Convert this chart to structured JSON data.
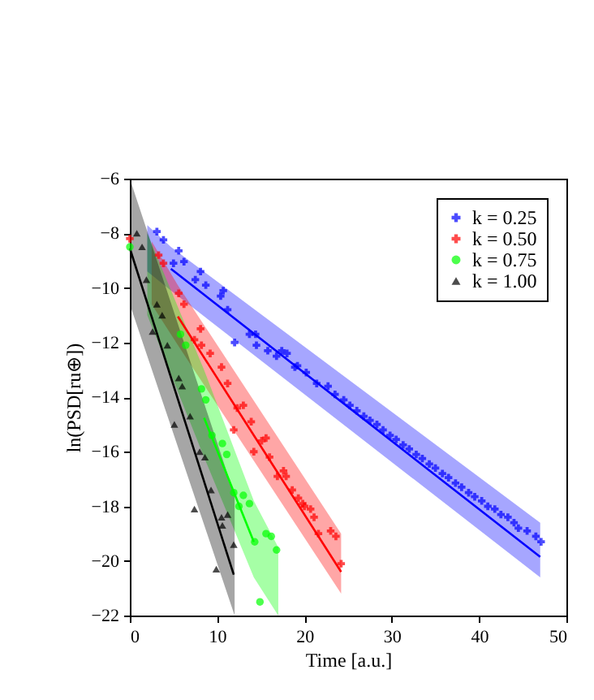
{
  "chart_data": {
    "type": "scatter",
    "xlabel": "Time [a.u.]",
    "ylabel": "ln(PSD[ru⊕])",
    "xlim": [
      0,
      50
    ],
    "ylim": [
      -22,
      -6
    ],
    "xticks": [
      0,
      10,
      20,
      30,
      40,
      50
    ],
    "yticks": [
      -22,
      -20,
      -18,
      -16,
      -14,
      -12,
      -10,
      -8,
      -6
    ],
    "legend": "top right",
    "series": [
      {
        "type": "line",
        "color": "#0000ff",
        "x": [
          2,
          4.7,
          47
        ],
        "values": [
          null,
          -9.3,
          -19.85
        ],
        "lower": [
          -9.4,
          -10.1,
          -20.6
        ],
        "upper": [
          -7.7,
          -8.5,
          -18.6
        ]
      },
      {
        "type": "line",
        "color": "#ff0000",
        "x": [
          2.5,
          5.5,
          24.2
        ],
        "values": [
          null,
          -11.05,
          -20.4
        ],
        "lower": [
          -10.6,
          -12.1,
          -21.2
        ],
        "upper": [
          -8.3,
          -9.9,
          -19.0
        ]
      },
      {
        "type": "line",
        "color": "#00ff00",
        "x": [
          2,
          8.5,
          14.2,
          17
        ],
        "values": [
          null,
          -14.76,
          -19.3,
          null
        ],
        "lower": [
          -11.0,
          -16.2,
          -20.6,
          -22
        ],
        "upper": [
          -8.0,
          -13.0,
          -17.8,
          -19.5
        ]
      },
      {
        "type": "line",
        "color": "#000000",
        "x": [
          0,
          11.9,
          12
        ],
        "values": [
          -8.55,
          -20.5,
          null
        ],
        "lower": [
          -10.6,
          -21.9,
          -22
        ],
        "upper": [
          -6,
          -17.5,
          -17.6
        ]
      },
      {
        "type": "scatter",
        "name": "k = 0.25",
        "color": "#0000ff",
        "marker": "cross",
        "x": [
          3.1,
          3.85,
          5.0,
          5.6,
          6.2,
          7.5,
          8.1,
          8.7,
          10.4,
          10.7,
          11.2,
          12.0,
          13.7,
          14.4,
          14.5,
          15.8,
          16.8,
          17.4,
          18,
          18.9,
          19.2,
          20.2,
          21.4,
          22.7,
          23.5,
          24.5,
          25.2,
          26,
          26.8,
          27.5,
          28.3,
          29,
          29.8,
          30.5,
          31.3,
          32,
          32.8,
          33.5,
          34.3,
          35,
          35.8,
          36.5,
          37.3,
          38,
          38.8,
          39.5,
          40.3,
          41,
          41.8,
          42.5,
          43.3,
          44,
          44.5,
          45.5,
          46.5,
          47.1
        ],
        "values": [
          -7.94,
          -8.24,
          -9.1,
          -8.64,
          -9.04,
          -9.7,
          -9.4,
          -9.9,
          -10.3,
          -10.1,
          -10.8,
          -12.0,
          -11.7,
          -11.7,
          -12.1,
          -12.3,
          -12.5,
          -12.3,
          -12.4,
          -12.9,
          -12.85,
          -13.1,
          -13.5,
          -13.6,
          -13.9,
          -14.1,
          -14.3,
          -14.5,
          -14.7,
          -14.85,
          -15.0,
          -15.2,
          -15.4,
          -15.55,
          -15.75,
          -15.9,
          -16.1,
          -16.25,
          -16.45,
          -16.6,
          -16.8,
          -16.95,
          -17.15,
          -17.3,
          -17.5,
          -17.65,
          -17.8,
          -18.0,
          -18.1,
          -18.3,
          -18.4,
          -18.6,
          -18.8,
          -18.9,
          -19.1,
          -19.3
        ]
      },
      {
        "type": "scatter",
        "name": "k = 0.50",
        "color": "#ff0000",
        "marker": "cross",
        "x": [
          0,
          3.3,
          3.85,
          5.6,
          6.2,
          7.4,
          8.1,
          8.2,
          9.2,
          10.5,
          11.2,
          11.9,
          12.3,
          13,
          13.9,
          14.2,
          15.1,
          15.6,
          16,
          16.9,
          17.6,
          17.9,
          18.6,
          19.3,
          19.8,
          20,
          20.7,
          21.1,
          21.6,
          23,
          23.6,
          24.2
        ],
        "values": [
          -8.2,
          -8.8,
          -9.1,
          -10.2,
          -10.6,
          -11.9,
          -11.5,
          -12.1,
          -12.4,
          -12.9,
          -13.5,
          -15.2,
          -14.4,
          -14.3,
          -14.9,
          -16.0,
          -15.6,
          -15.5,
          -16.2,
          -16.9,
          -16.7,
          -16.9,
          -17.4,
          -17.7,
          -17.9,
          -18.0,
          -18.1,
          -18.4,
          -19.0,
          -18.9,
          -19.1,
          -20.1
        ]
      },
      {
        "type": "scatter",
        "name": "k = 0.75",
        "color": "#00ff00",
        "marker": "circle",
        "x": [
          0,
          5.8,
          6.4,
          8.2,
          8.7,
          9.4,
          10.6,
          11.1,
          11.9,
          12.5,
          13,
          13.7,
          14.3,
          14.9,
          15.6,
          16.2,
          16.8
        ],
        "values": [
          -8.5,
          -11.7,
          -12.1,
          -13.7,
          -14.1,
          -15.4,
          -15.7,
          -16.1,
          -17.5,
          -18.0,
          -17.6,
          -17.9,
          -19.3,
          -21.5,
          -19.0,
          -19.1,
          -19.6
        ]
      },
      {
        "type": "scatter",
        "name": "k = 1.00",
        "color": "#000000",
        "marker": "triangle",
        "x": [
          0.8,
          1.4,
          1.9,
          2.6,
          3.1,
          3.7,
          4.3,
          5.1,
          5.6,
          6.0,
          6.9,
          7.4,
          8.0,
          8.6,
          9.3,
          9.9,
          10.5,
          10.6,
          11.2,
          11.9
        ],
        "values": [
          -8.0,
          -8.5,
          -9.7,
          -11.6,
          -10.6,
          -11.0,
          -12.1,
          -15.0,
          -13.3,
          -13.6,
          -14.7,
          -18.1,
          -16.0,
          -16.2,
          -17.4,
          -20.3,
          -18.4,
          -18.7,
          -18.3,
          -19.4
        ]
      }
    ]
  }
}
